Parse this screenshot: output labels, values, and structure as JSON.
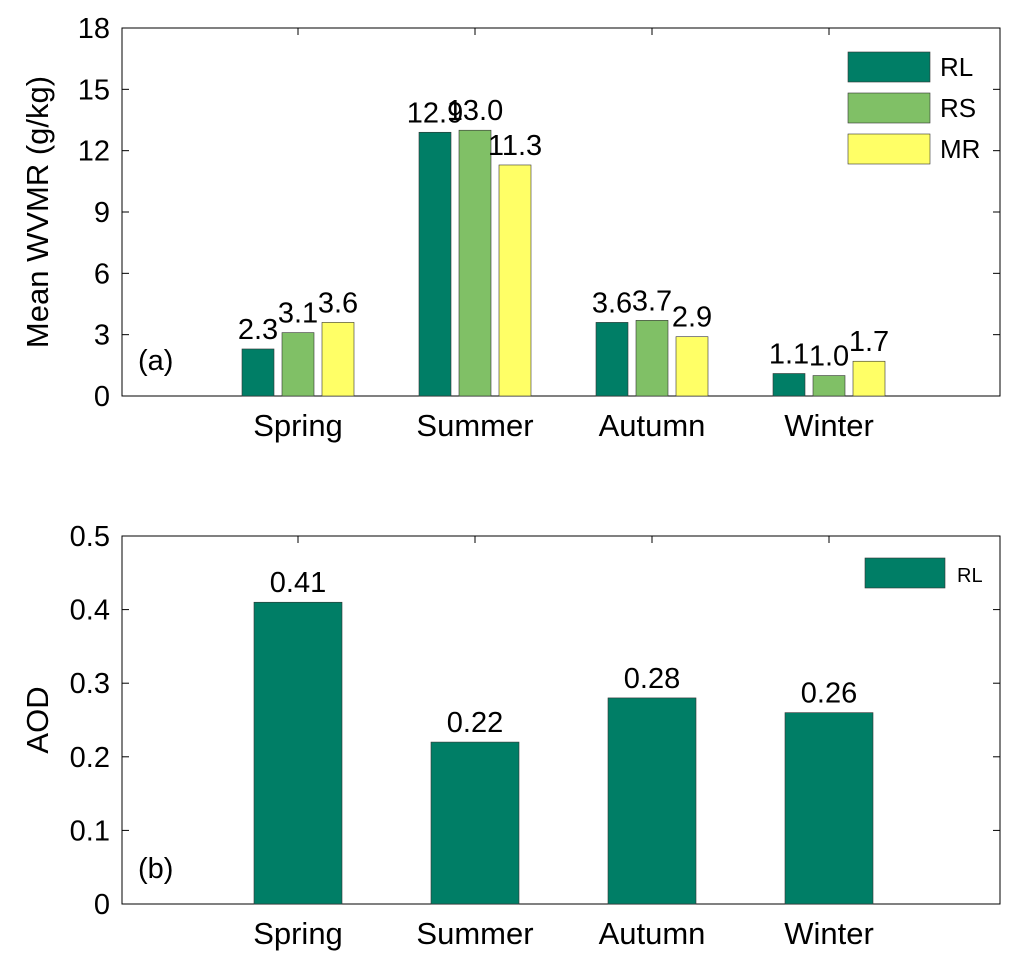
{
  "colors": {
    "RL": "#007e66",
    "RS": "#80c066",
    "MR": "#ffff66"
  },
  "chart_data": [
    {
      "type": "bar",
      "panel_label": "(a)",
      "categories": [
        "Spring",
        "Summer",
        "Autumn",
        "Winter"
      ],
      "series": [
        {
          "name": "RL",
          "values": [
            2.3,
            12.9,
            3.6,
            1.1
          ],
          "labels": [
            "2.3",
            "12.9",
            "3.6",
            "1.1"
          ]
        },
        {
          "name": "RS",
          "values": [
            3.1,
            13.0,
            3.7,
            1.0
          ],
          "labels": [
            "3.1",
            "13.0",
            "3.7",
            "1.0"
          ]
        },
        {
          "name": "MR",
          "values": [
            3.6,
            11.3,
            2.9,
            1.7
          ],
          "labels": [
            "3.6",
            "11.3",
            "2.9",
            "1.7"
          ]
        }
      ],
      "ylabel": "Mean WVMR (g/kg)",
      "xlabel": "",
      "ylim": [
        0,
        18
      ],
      "yticks": [
        "0",
        "3",
        "6",
        "9",
        "12",
        "15",
        "18"
      ],
      "legend": "top-right",
      "grid": false
    },
    {
      "type": "bar",
      "panel_label": "(b)",
      "categories": [
        "Spring",
        "Summer",
        "Autumn",
        "Winter"
      ],
      "series": [
        {
          "name": "RL",
          "values": [
            0.41,
            0.22,
            0.28,
            0.26
          ],
          "labels": [
            "0.41",
            "0.22",
            "0.28",
            "0.26"
          ]
        }
      ],
      "ylabel": "AOD",
      "xlabel": "",
      "ylim": [
        0,
        0.5
      ],
      "yticks": [
        "0",
        "0.1",
        "0.2",
        "0.3",
        "0.4",
        "0.5"
      ],
      "legend": "top-right",
      "grid": false
    }
  ]
}
